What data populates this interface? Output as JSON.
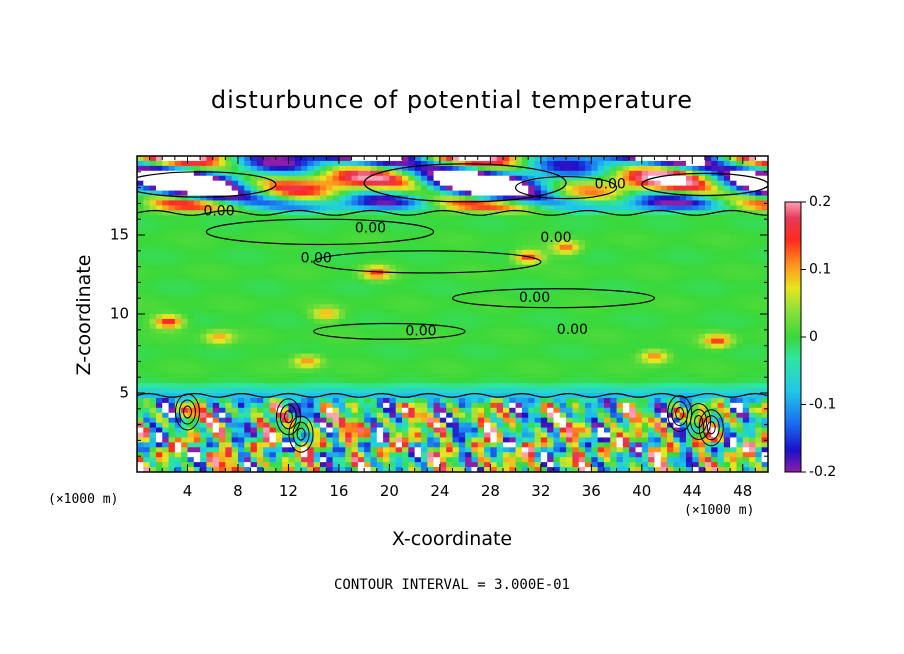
{
  "chart_data": {
    "type": "heatmap",
    "title": "disturbunce of potential temperature",
    "xlabel": "X-coordinate",
    "ylabel": "Z-coordinate",
    "x_unit_left": "(×1000 m)",
    "x_unit_right": "(×1000 m)",
    "xlim": [
      0,
      50
    ],
    "ylim": [
      0,
      20
    ],
    "x_ticks": [
      4,
      8,
      12,
      16,
      20,
      24,
      28,
      32,
      36,
      40,
      44,
      48
    ],
    "y_ticks": [
      5,
      10,
      15
    ],
    "colorbar": {
      "min": -0.2,
      "max": 0.2,
      "ticks": [
        {
          "value": 0.2,
          "label": "0.2"
        },
        {
          "value": 0.1,
          "label": "0.1"
        },
        {
          "value": 0.0,
          "label": "0"
        },
        {
          "value": -0.1,
          "label": "-0.1"
        },
        {
          "value": -0.2,
          "label": "-0.2"
        }
      ]
    },
    "contour_labels": [
      {
        "x": 31.5,
        "y": 11.0,
        "text": "0.00"
      },
      {
        "x": 14.2,
        "y": 13.5,
        "text": "0.00"
      },
      {
        "x": 18.5,
        "y": 15.4,
        "text": "0.00"
      },
      {
        "x": 6.5,
        "y": 16.5,
        "text": "0.00"
      },
      {
        "x": 34.5,
        "y": 9.0,
        "text": "0.00"
      },
      {
        "x": 22.5,
        "y": 8.9,
        "text": "0.00"
      },
      {
        "x": 37.5,
        "y": 18.2,
        "text": "0.00"
      },
      {
        "x": 33.2,
        "y": 14.8,
        "text": "0.00"
      }
    ],
    "contour_interval": "CONTOUR INTERVAL = 3.000E-01"
  }
}
